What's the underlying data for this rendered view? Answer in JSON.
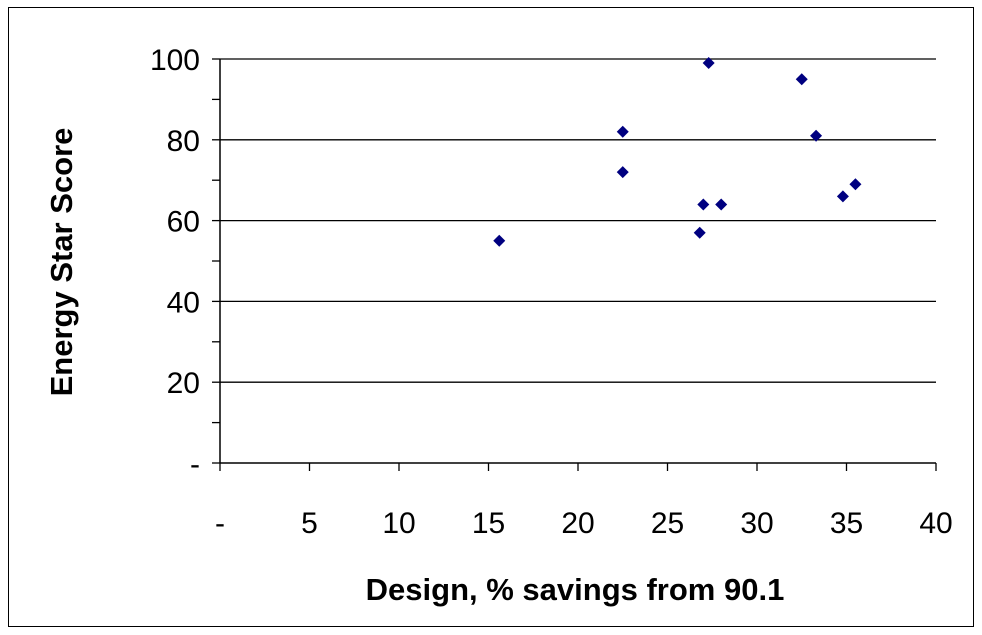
{
  "chart_data": {
    "type": "scatter",
    "title": "",
    "xlabel": "Design, % savings from 90.1",
    "ylabel": "Energy Star Score",
    "xlim": [
      0,
      40
    ],
    "ylim": [
      0,
      100
    ],
    "x_ticks": [
      0,
      5,
      10,
      15,
      20,
      25,
      30,
      35,
      40
    ],
    "x_tick_labels": [
      "-",
      "5",
      "10",
      "15",
      "20",
      "25",
      "30",
      "35",
      "40"
    ],
    "y_ticks": [
      0,
      20,
      40,
      60,
      80,
      100
    ],
    "y_tick_labels": [
      "-",
      "20",
      "40",
      "60",
      "80",
      "100"
    ],
    "y_minor_step": 10,
    "grid": "horizontal major",
    "legend": "none",
    "marker": "diamond",
    "marker_color": "#000080",
    "points": [
      {
        "x": 15.6,
        "y": 55
      },
      {
        "x": 22.5,
        "y": 82
      },
      {
        "x": 22.5,
        "y": 72
      },
      {
        "x": 26.8,
        "y": 57
      },
      {
        "x": 27.0,
        "y": 64
      },
      {
        "x": 27.3,
        "y": 99
      },
      {
        "x": 28.0,
        "y": 64
      },
      {
        "x": 32.5,
        "y": 95
      },
      {
        "x": 33.3,
        "y": 81
      },
      {
        "x": 34.8,
        "y": 66
      },
      {
        "x": 35.5,
        "y": 69
      }
    ]
  }
}
